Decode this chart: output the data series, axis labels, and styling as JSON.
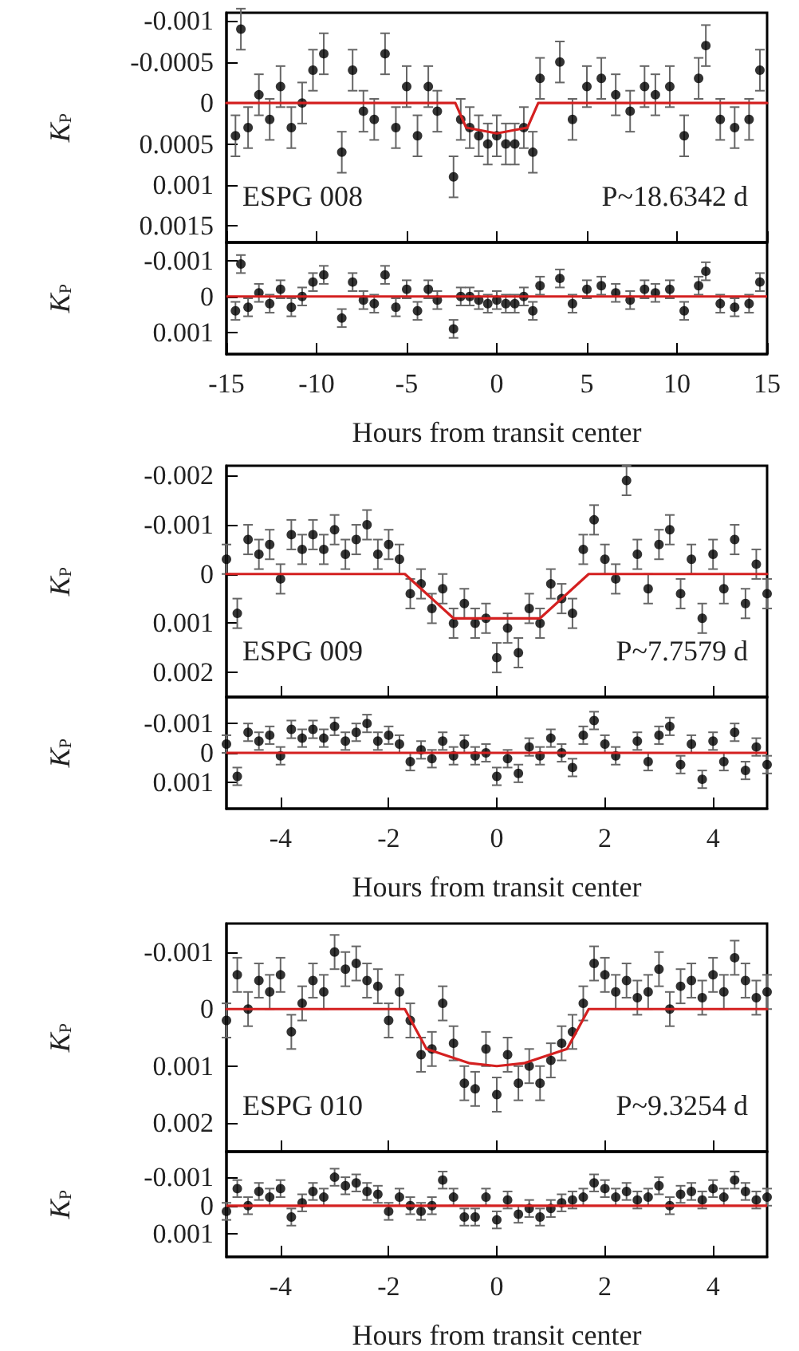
{
  "chart_data": [
    {
      "type": "scatter",
      "ylabel": "K$_{P}$",
      "annotations": [
        "ESPG 008",
        "P~18.6342 d"
      ],
      "xlim": [
        -15,
        15
      ],
      "xticks": [
        -15,
        -10,
        -5,
        0,
        5,
        10,
        15
      ],
      "ylim": [
        0.0017,
        -0.0011
      ],
      "yticks": [
        -0.001,
        -0.0005,
        0,
        0.0005,
        0.001,
        0.0015
      ],
      "tick_labels": "y",
      "marker": "circle",
      "series": [
        {
          "color": "#000000",
          "x": [
            -14.5,
            -14.2,
            -13.8,
            -13.2,
            -12.6,
            -12,
            -11.4,
            -10.8,
            -10.2,
            -9.6,
            -8.6,
            -8,
            -7.4,
            -6.8,
            -6.2,
            -5.6,
            -5,
            -4.4,
            -3.8,
            -3.3,
            -2.4,
            -2,
            -1.5,
            -1,
            -0.5,
            0,
            0.5,
            1,
            1.5,
            2,
            2.4,
            3.5,
            4.2,
            5,
            5.8,
            6.6,
            7.4,
            8.2,
            8.8,
            9.6,
            10.4,
            11.2,
            11.6,
            12.4,
            13.2,
            14,
            14.6
          ],
          "values": [
            0.0004,
            -0.0009,
            0.0003,
            -0.0001,
            0.0002,
            -0.0002,
            0.0003,
            0,
            -0.0004,
            -0.0006,
            0.0006,
            -0.0004,
            0.0001,
            0.0002,
            -0.0006,
            0.0003,
            -0.0002,
            0.0004,
            -0.0002,
            0.0001,
            0.0009,
            0.0002,
            0.0003,
            0.0004,
            0.0005,
            0.0004,
            0.0005,
            0.0005,
            0.0003,
            0.0006,
            -0.0003,
            -0.0005,
            0.0002,
            -0.0002,
            -0.0003,
            -0.0001,
            0.0001,
            -0.0002,
            -0.0001,
            -0.0002,
            0.0004,
            -0.0003,
            -0.0007,
            0.0002,
            0.0003,
            0.0002,
            -0.0004
          ],
          "errors": [
            0.00025,
            0.00025,
            0.00025,
            0.00025,
            0.00025,
            0.00025,
            0.00025,
            0.00025,
            0.00025,
            0.00025,
            0.00025,
            0.00025,
            0.00025,
            0.00025,
            0.00025,
            0.00025,
            0.00025,
            0.00025,
            0.00025,
            0.00025,
            0.00025,
            0.00025,
            0.00025,
            0.00025,
            0.00025,
            0.00025,
            0.00025,
            0.00025,
            0.00025,
            0.00025,
            0.00025,
            0.00025,
            0.00025,
            0.00025,
            0.00025,
            0.00025,
            0.00025,
            0.00025,
            0.00025,
            0.00025,
            0.00025,
            0.00025,
            0.00025,
            0.00025,
            0.00025,
            0.00025,
            0.00025
          ]
        },
        {
          "type": "line",
          "marker": "none",
          "color": "#d42020",
          "x": [
            -15,
            -2.3,
            -1.7,
            0,
            1.7,
            2.3,
            15
          ],
          "values": [
            0,
            0,
            0.0003,
            0.00037,
            0.0003,
            0,
            0
          ]
        }
      ]
    },
    {
      "type": "scatter",
      "ylabel": "K$_{P}$",
      "xlabel": "Hours from transit center",
      "xlim": [
        -15,
        15
      ],
      "xticks": [
        -15,
        -10,
        -5,
        0,
        5,
        10,
        15
      ],
      "ylim": [
        0.0016,
        -0.0015
      ],
      "yticks": [
        -0.001,
        0,
        0.001
      ],
      "marker": "circle",
      "ref_lines": [
        {
          "axis": "y",
          "value": 0,
          "color": "#d42020"
        }
      ],
      "series": [
        {
          "color": "#000000",
          "x": [
            -14.5,
            -14.2,
            -13.8,
            -13.2,
            -12.6,
            -12,
            -11.4,
            -10.8,
            -10.2,
            -9.6,
            -8.6,
            -8,
            -7.4,
            -6.8,
            -6.2,
            -5.6,
            -5,
            -4.4,
            -3.8,
            -3.3,
            -2.4,
            -2,
            -1.5,
            -1,
            -0.5,
            0,
            0.5,
            1,
            1.5,
            2,
            2.4,
            3.5,
            4.2,
            5,
            5.8,
            6.6,
            7.4,
            8.2,
            8.8,
            9.6,
            10.4,
            11.2,
            11.6,
            12.4,
            13.2,
            14,
            14.6
          ],
          "values": [
            0.0004,
            -0.0009,
            0.0003,
            -0.0001,
            0.0002,
            -0.0002,
            0.0003,
            0,
            -0.0004,
            -0.0006,
            0.0006,
            -0.0004,
            0.0001,
            0.0002,
            -0.0006,
            0.0003,
            -0.0002,
            0.0004,
            -0.0002,
            0.0001,
            0.0009,
            0,
            0,
            0.0001,
            0.0002,
            0.0001,
            0.0002,
            0.0002,
            0,
            0.0004,
            -0.0003,
            -0.0005,
            0.0002,
            -0.0002,
            -0.0003,
            -0.0001,
            0.0001,
            -0.0002,
            -0.0001,
            -0.0002,
            0.0004,
            -0.0003,
            -0.0007,
            0.0002,
            0.0003,
            0.0002,
            -0.0004
          ],
          "errors": [
            0.00025,
            0.00025,
            0.00025,
            0.00025,
            0.00025,
            0.00025,
            0.00025,
            0.00025,
            0.00025,
            0.00025,
            0.00025,
            0.00025,
            0.00025,
            0.00025,
            0.00025,
            0.00025,
            0.00025,
            0.00025,
            0.00025,
            0.00025,
            0.00025,
            0.00025,
            0.00025,
            0.00025,
            0.00025,
            0.00025,
            0.00025,
            0.00025,
            0.00025,
            0.00025,
            0.00025,
            0.00025,
            0.00025,
            0.00025,
            0.00025,
            0.00025,
            0.00025,
            0.00025,
            0.00025,
            0.00025,
            0.00025,
            0.00025,
            0.00025,
            0.00025,
            0.00025,
            0.00025,
            0.00025
          ]
        }
      ]
    },
    {
      "type": "scatter",
      "ylabel": "K$_{P}$",
      "annotations": [
        "ESPG 009",
        "P~7.7579 d"
      ],
      "xlim": [
        -5,
        5
      ],
      "xticks": [
        -4,
        -2,
        0,
        2,
        4
      ],
      "ylim": [
        0.0025,
        -0.0022
      ],
      "yticks": [
        -0.002,
        -0.001,
        0,
        0.001,
        0.002
      ],
      "tick_labels": "y",
      "marker": "circle",
      "series": [
        {
          "color": "#000000",
          "x": [
            -5,
            -4.8,
            -4.6,
            -4.4,
            -4.2,
            -4,
            -3.8,
            -3.6,
            -3.4,
            -3.2,
            -3,
            -2.8,
            -2.6,
            -2.4,
            -2.2,
            -2,
            -1.8,
            -1.6,
            -1.4,
            -1.2,
            -1,
            -0.8,
            -0.6,
            -0.4,
            -0.2,
            0,
            0.2,
            0.4,
            0.6,
            0.8,
            1,
            1.2,
            1.4,
            1.6,
            1.8,
            2,
            2.2,
            2.4,
            2.6,
            2.8,
            3,
            3.2,
            3.4,
            3.6,
            3.8,
            4,
            4.2,
            4.4,
            4.6,
            4.8,
            5
          ],
          "values": [
            -0.0003,
            0.0008,
            -0.0007,
            -0.0004,
            -0.0006,
            0.0001,
            -0.0008,
            -0.0005,
            -0.0008,
            -0.0005,
            -0.0009,
            -0.0004,
            -0.0007,
            -0.001,
            -0.0004,
            -0.0006,
            -0.0003,
            0.0004,
            0.0002,
            0.0007,
            0.0003,
            0.001,
            0.0006,
            0.001,
            0.0009,
            0.0017,
            0.0011,
            0.0016,
            0.0007,
            0.001,
            0.0002,
            0.0005,
            0.0008,
            -0.0005,
            -0.0011,
            -0.0003,
            0.0001,
            -0.0019,
            -0.0004,
            0.0003,
            -0.0006,
            -0.0009,
            0.0004,
            -0.0003,
            0.0009,
            -0.0004,
            0.0003,
            -0.0007,
            0.0006,
            -0.0002,
            0.0004
          ],
          "errors": [
            0.0003,
            0.0003,
            0.0003,
            0.0003,
            0.0003,
            0.0003,
            0.0003,
            0.0003,
            0.0003,
            0.0003,
            0.0003,
            0.0003,
            0.0003,
            0.0003,
            0.0003,
            0.0003,
            0.0003,
            0.0003,
            0.0003,
            0.0003,
            0.0003,
            0.0003,
            0.0003,
            0.0003,
            0.0003,
            0.0003,
            0.0003,
            0.0003,
            0.0003,
            0.0003,
            0.0003,
            0.0003,
            0.0003,
            0.0003,
            0.0003,
            0.0003,
            0.0003,
            0.0003,
            0.0003,
            0.0003,
            0.0003,
            0.0003,
            0.0003,
            0.0003,
            0.0003,
            0.0003,
            0.0003,
            0.0003,
            0.0003,
            0.0003,
            0.0003
          ]
        },
        {
          "type": "line",
          "marker": "none",
          "color": "#d42020",
          "x": [
            -5,
            -1.7,
            -0.8,
            0.8,
            1.7,
            5
          ],
          "values": [
            0,
            0,
            0.0009,
            0.0009,
            0,
            0
          ]
        }
      ]
    },
    {
      "type": "scatter",
      "ylabel": "K$_{P}$",
      "xlabel": "Hours from transit center",
      "xlim": [
        -5,
        5
      ],
      "xticks": [
        -4,
        -2,
        0,
        2,
        4
      ],
      "ylim": [
        0.0019,
        -0.0019
      ],
      "yticks": [
        -0.001,
        0,
        0.001
      ],
      "marker": "circle",
      "ref_lines": [
        {
          "axis": "y",
          "value": 0,
          "color": "#d42020"
        }
      ],
      "series": [
        {
          "color": "#000000",
          "x": [
            -5,
            -4.8,
            -4.6,
            -4.4,
            -4.2,
            -4,
            -3.8,
            -3.6,
            -3.4,
            -3.2,
            -3,
            -2.8,
            -2.6,
            -2.4,
            -2.2,
            -2,
            -1.8,
            -1.6,
            -1.4,
            -1.2,
            -1,
            -0.8,
            -0.6,
            -0.4,
            -0.2,
            0,
            0.2,
            0.4,
            0.6,
            0.8,
            1,
            1.2,
            1.4,
            1.6,
            1.8,
            2,
            2.2,
            2.4,
            2.6,
            2.8,
            3,
            3.2,
            3.4,
            3.6,
            3.8,
            4,
            4.2,
            4.4,
            4.6,
            4.8,
            5
          ],
          "values": [
            -0.0003,
            0.0008,
            -0.0007,
            -0.0004,
            -0.0006,
            0.0001,
            -0.0008,
            -0.0005,
            -0.0008,
            -0.0005,
            -0.0009,
            -0.0004,
            -0.0007,
            -0.001,
            -0.0004,
            -0.0006,
            -0.0003,
            0.0003,
            -0.0001,
            0.0002,
            -0.0004,
            0.0001,
            -0.0003,
            0.0001,
            0,
            0.0008,
            0.0002,
            0.0007,
            -0.0002,
            0.0001,
            -0.0005,
            0,
            0.0005,
            -0.0006,
            -0.0011,
            -0.0003,
            0.0001,
            null,
            -0.0004,
            0.0003,
            -0.0006,
            -0.0009,
            0.0004,
            -0.0003,
            0.0009,
            -0.0004,
            0.0003,
            -0.0007,
            0.0006,
            -0.0002,
            0.0004
          ],
          "errors": [
            0.0003,
            0.0003,
            0.0003,
            0.0003,
            0.0003,
            0.0003,
            0.0003,
            0.0003,
            0.0003,
            0.0003,
            0.0003,
            0.0003,
            0.0003,
            0.0003,
            0.0003,
            0.0003,
            0.0003,
            0.0003,
            0.0003,
            0.0003,
            0.0003,
            0.0003,
            0.0003,
            0.0003,
            0.0003,
            0.0003,
            0.0003,
            0.0003,
            0.0003,
            0.0003,
            0.0003,
            0.0003,
            0.0003,
            0.0003,
            0.0003,
            0.0003,
            0.0003,
            null,
            0.0003,
            0.0003,
            0.0003,
            0.0003,
            0.0003,
            0.0003,
            0.0003,
            0.0003,
            0.0003,
            0.0003,
            0.0003,
            0.0003,
            0.0003
          ]
        }
      ]
    },
    {
      "type": "scatter",
      "ylabel": "K$_{P}$",
      "annotations": [
        "ESPG 010",
        "P~9.3254 d"
      ],
      "xlim": [
        -5,
        5
      ],
      "xticks": [
        -4,
        -2,
        0,
        2,
        4
      ],
      "ylim": [
        0.0025,
        -0.0015
      ],
      "yticks": [
        -0.001,
        0,
        0.001,
        0.002
      ],
      "tick_labels": "y",
      "marker": "circle",
      "series": [
        {
          "color": "#000000",
          "x": [
            -5,
            -4.8,
            -4.6,
            -4.4,
            -4.2,
            -4,
            -3.8,
            -3.6,
            -3.4,
            -3.2,
            -3,
            -2.8,
            -2.6,
            -2.4,
            -2.2,
            -2,
            -1.8,
            -1.6,
            -1.4,
            -1.2,
            -1,
            -0.8,
            -0.6,
            -0.4,
            -0.2,
            0,
            0.2,
            0.4,
            0.6,
            0.8,
            1,
            1.2,
            1.4,
            1.6,
            1.8,
            2,
            2.2,
            2.4,
            2.6,
            2.8,
            3,
            3.2,
            3.4,
            3.6,
            3.8,
            4,
            4.2,
            4.4,
            4.6,
            4.8,
            5
          ],
          "values": [
            0.0002,
            -0.0006,
            0,
            -0.0005,
            -0.0003,
            -0.0006,
            0.0004,
            -0.0001,
            -0.0005,
            -0.0003,
            -0.001,
            -0.0007,
            -0.0008,
            -0.0005,
            -0.0004,
            0.0002,
            -0.0003,
            0.0002,
            0.0008,
            0.0007,
            -0.0001,
            0.0006,
            0.0013,
            0.0014,
            0.0007,
            0.0015,
            0.0008,
            0.0013,
            0.001,
            0.0013,
            0.0009,
            0.0006,
            0.0004,
            -0.0001,
            -0.0008,
            -0.0006,
            -0.0003,
            -0.0005,
            -0.0002,
            -0.0003,
            -0.0007,
            0,
            -0.0004,
            -0.0005,
            -0.0002,
            -0.0006,
            -0.0003,
            -0.0009,
            -0.0005,
            -0.0002,
            -0.0003
          ],
          "errors": [
            0.0003,
            0.0003,
            0.0003,
            0.0003,
            0.0003,
            0.0003,
            0.0003,
            0.0003,
            0.0003,
            0.0003,
            0.0003,
            0.0003,
            0.0003,
            0.0003,
            0.0003,
            0.0003,
            0.0003,
            0.0003,
            0.0003,
            0.0003,
            0.0003,
            0.0003,
            0.0003,
            0.0003,
            0.0003,
            0.0003,
            0.0003,
            0.0003,
            0.0003,
            0.0003,
            0.0003,
            0.0003,
            0.0003,
            0.0003,
            0.0003,
            0.0003,
            0.0003,
            0.0003,
            0.0003,
            0.0003,
            0.0003,
            0.0003,
            0.0003,
            0.0003,
            0.0003,
            0.0003,
            0.0003,
            0.0003,
            0.0003,
            0.0003,
            0.0003
          ]
        },
        {
          "type": "line",
          "marker": "none",
          "color": "#d42020",
          "x": [
            -5,
            -1.7,
            -1.3,
            -0.5,
            0,
            0.5,
            1.3,
            1.7,
            5
          ],
          "values": [
            0,
            0,
            0.0007,
            0.00095,
            0.001,
            0.00095,
            0.0007,
            0,
            0
          ]
        }
      ]
    },
    {
      "type": "scatter",
      "ylabel": "K$_{P}$",
      "xlabel": "Hours from transit center",
      "xlim": [
        -5,
        5
      ],
      "xticks": [
        -4,
        -2,
        0,
        2,
        4
      ],
      "ylim": [
        0.0018,
        -0.0019
      ],
      "yticks": [
        -0.001,
        0,
        0.001
      ],
      "marker": "circle",
      "ref_lines": [
        {
          "axis": "y",
          "value": 0,
          "color": "#d42020"
        }
      ],
      "series": [
        {
          "color": "#000000",
          "x": [
            -5,
            -4.8,
            -4.6,
            -4.4,
            -4.2,
            -4,
            -3.8,
            -3.6,
            -3.4,
            -3.2,
            -3,
            -2.8,
            -2.6,
            -2.4,
            -2.2,
            -2,
            -1.8,
            -1.6,
            -1.4,
            -1.2,
            -1,
            -0.8,
            -0.6,
            -0.4,
            -0.2,
            0,
            0.2,
            0.4,
            0.6,
            0.8,
            1,
            1.2,
            1.4,
            1.6,
            1.8,
            2,
            2.2,
            2.4,
            2.6,
            2.8,
            3,
            3.2,
            3.4,
            3.6,
            3.8,
            4,
            4.2,
            4.4,
            4.6,
            4.8,
            5
          ],
          "values": [
            0.0002,
            -0.0006,
            0,
            -0.0005,
            -0.0003,
            -0.0006,
            0.0004,
            -0.0001,
            -0.0005,
            -0.0003,
            -0.001,
            -0.0007,
            -0.0008,
            -0.0005,
            -0.0004,
            0.0002,
            -0.0003,
            0,
            0.0002,
            0,
            -0.0009,
            -0.0003,
            0.0004,
            0.0004,
            -0.0003,
            0.0005,
            -0.0002,
            0.0003,
            0.0001,
            0.0004,
            0.0001,
            -0.0001,
            -0.0002,
            -0.0003,
            -0.0008,
            -0.0006,
            -0.0003,
            -0.0005,
            -0.0002,
            -0.0003,
            -0.0007,
            0,
            -0.0004,
            -0.0005,
            -0.0002,
            -0.0006,
            -0.0003,
            -0.0009,
            -0.0005,
            -0.0002,
            -0.0003
          ],
          "errors": [
            0.0003,
            0.0003,
            0.0003,
            0.0003,
            0.0003,
            0.0003,
            0.0003,
            0.0003,
            0.0003,
            0.0003,
            0.0003,
            0.0003,
            0.0003,
            0.0003,
            0.0003,
            0.0003,
            0.0003,
            0.0003,
            0.0003,
            0.0003,
            0.0003,
            0.0003,
            0.0003,
            0.0003,
            0.0003,
            0.0003,
            0.0003,
            0.0003,
            0.0003,
            0.0003,
            0.0003,
            0.0003,
            0.0003,
            0.0003,
            0.0003,
            0.0003,
            0.0003,
            0.0003,
            0.0003,
            0.0003,
            0.0003,
            0.0003,
            0.0003,
            0.0003,
            0.0003,
            0.0003,
            0.0003,
            0.0003,
            0.0003,
            0.0003,
            0.0003
          ]
        }
      ]
    }
  ]
}
